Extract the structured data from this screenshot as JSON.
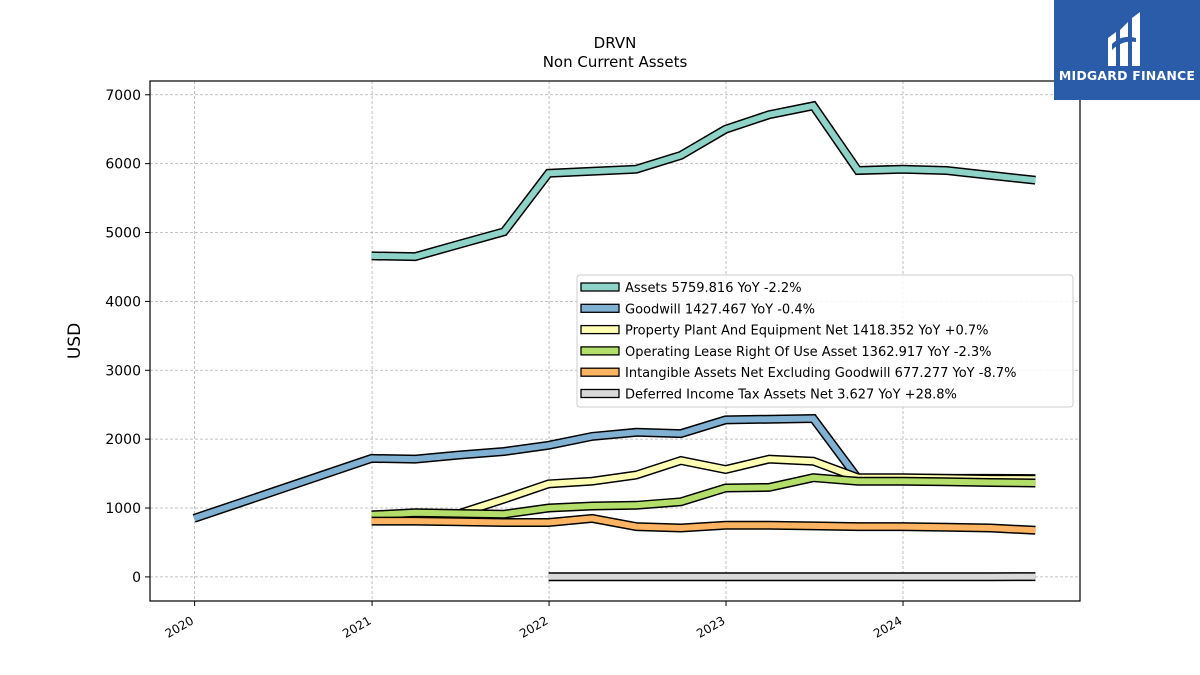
{
  "chart_data": {
    "type": "line",
    "title": "DRVN",
    "subtitle": "Non Current  Assets",
    "ylabel": "USD",
    "xlabel": "",
    "ylim": [
      -350,
      7200
    ],
    "xlim": [
      "2019-10-01",
      "2024-12-31"
    ],
    "yticks": [
      0,
      1000,
      2000,
      3000,
      4000,
      5000,
      6000,
      7000
    ],
    "xticks": [
      "2020",
      "2021",
      "2022",
      "2023",
      "2024"
    ],
    "grid": true,
    "legend_position": "center-right",
    "series": [
      {
        "name": "Assets",
        "legend": "Assets  5759.816 YoY -2.2%",
        "color": "#8dd3c7",
        "points": [
          [
            "2020-12-31",
            4660
          ],
          [
            "2021-03-31",
            4650
          ],
          [
            "2021-06-30",
            4830
          ],
          [
            "2021-09-30",
            5010
          ],
          [
            "2021-12-31",
            5860
          ],
          [
            "2022-03-31",
            5890
          ],
          [
            "2022-06-30",
            5920
          ],
          [
            "2022-09-30",
            6120
          ],
          [
            "2022-12-31",
            6500
          ],
          [
            "2023-03-31",
            6710
          ],
          [
            "2023-06-30",
            6840
          ],
          [
            "2023-09-30",
            5900
          ],
          [
            "2023-12-31",
            5920
          ],
          [
            "2024-03-31",
            5900
          ],
          [
            "2024-06-30",
            5830
          ],
          [
            "2024-09-30",
            5760
          ]
        ]
      },
      {
        "name": "Goodwill",
        "legend": "Goodwill  1427.467 YoY -0.4%",
        "color": "#80b1d3",
        "points": [
          [
            "2019-12-31",
            850
          ],
          [
            "2020-12-31",
            1720
          ],
          [
            "2021-03-31",
            1710
          ],
          [
            "2021-06-30",
            1770
          ],
          [
            "2021-09-30",
            1820
          ],
          [
            "2021-12-31",
            1910
          ],
          [
            "2022-03-31",
            2040
          ],
          [
            "2022-06-30",
            2100
          ],
          [
            "2022-09-30",
            2080
          ],
          [
            "2022-12-31",
            2280
          ],
          [
            "2023-03-31",
            2290
          ],
          [
            "2023-06-30",
            2300
          ],
          [
            "2023-09-30",
            1430
          ],
          [
            "2023-12-31",
            1430
          ],
          [
            "2024-03-31",
            1430
          ],
          [
            "2024-06-30",
            1430
          ],
          [
            "2024-09-30",
            1427
          ]
        ]
      },
      {
        "name": "Property Plant And Equipment Net",
        "legend": "Property Plant And Equipment Net  1418.352 YoY +0.7%",
        "color": "#ffffb3",
        "points": [
          [
            "2020-12-31",
            880
          ],
          [
            "2021-03-31",
            900
          ],
          [
            "2021-06-30",
            920
          ],
          [
            "2021-09-30",
            1130
          ],
          [
            "2021-12-31",
            1350
          ],
          [
            "2022-03-31",
            1390
          ],
          [
            "2022-06-30",
            1480
          ],
          [
            "2022-09-30",
            1690
          ],
          [
            "2022-12-31",
            1560
          ],
          [
            "2023-03-31",
            1710
          ],
          [
            "2023-06-30",
            1680
          ],
          [
            "2023-09-30",
            1440
          ],
          [
            "2023-12-31",
            1440
          ],
          [
            "2024-03-31",
            1430
          ],
          [
            "2024-06-30",
            1420
          ],
          [
            "2024-09-30",
            1418
          ]
        ]
      },
      {
        "name": "Operating Lease Right Of Use Asset",
        "legend": "Operating Lease Right Of Use Asset  1362.917 YoY -2.3%",
        "color": "#b3de69",
        "points": [
          [
            "2020-12-31",
            900
          ],
          [
            "2021-03-31",
            930
          ],
          [
            "2021-06-30",
            920
          ],
          [
            "2021-09-30",
            910
          ],
          [
            "2021-12-31",
            1000
          ],
          [
            "2022-03-31",
            1030
          ],
          [
            "2022-06-30",
            1040
          ],
          [
            "2022-09-30",
            1090
          ],
          [
            "2022-12-31",
            1290
          ],
          [
            "2023-03-31",
            1300
          ],
          [
            "2023-06-30",
            1440
          ],
          [
            "2023-09-30",
            1390
          ],
          [
            "2023-12-31",
            1390
          ],
          [
            "2024-03-31",
            1380
          ],
          [
            "2024-06-30",
            1370
          ],
          [
            "2024-09-30",
            1363
          ]
        ]
      },
      {
        "name": "Intangible Assets Net Excluding Goodwill",
        "legend": "Intangible Assets Net Excluding Goodwill  677.277 YoY -8.7%",
        "color": "#fdb462",
        "points": [
          [
            "2020-12-31",
            810
          ],
          [
            "2021-03-31",
            810
          ],
          [
            "2021-06-30",
            800
          ],
          [
            "2021-09-30",
            790
          ],
          [
            "2021-12-31",
            790
          ],
          [
            "2022-03-31",
            850
          ],
          [
            "2022-06-30",
            730
          ],
          [
            "2022-09-30",
            710
          ],
          [
            "2022-12-31",
            750
          ],
          [
            "2023-03-31",
            750
          ],
          [
            "2023-06-30",
            740
          ],
          [
            "2023-09-30",
            730
          ],
          [
            "2023-12-31",
            730
          ],
          [
            "2024-03-31",
            720
          ],
          [
            "2024-06-30",
            710
          ],
          [
            "2024-09-30",
            677
          ]
        ]
      },
      {
        "name": "Deferred Income Tax Assets Net",
        "legend": "Deferred Income Tax Assets Net  3.627 YoY +28.8%",
        "color": "#d9d9d9",
        "points": [
          [
            "2021-12-31",
            3
          ],
          [
            "2022-03-31",
            3
          ],
          [
            "2022-06-30",
            3
          ],
          [
            "2022-09-30",
            3
          ],
          [
            "2022-12-31",
            3
          ],
          [
            "2023-03-31",
            3
          ],
          [
            "2023-06-30",
            3
          ],
          [
            "2023-09-30",
            3
          ],
          [
            "2023-12-31",
            3
          ],
          [
            "2024-03-31",
            3
          ],
          [
            "2024-06-30",
            3
          ],
          [
            "2024-09-30",
            3.6
          ]
        ]
      }
    ]
  },
  "logo": {
    "text": "MIDGARD FINANCE",
    "color": "#2a5caa"
  }
}
